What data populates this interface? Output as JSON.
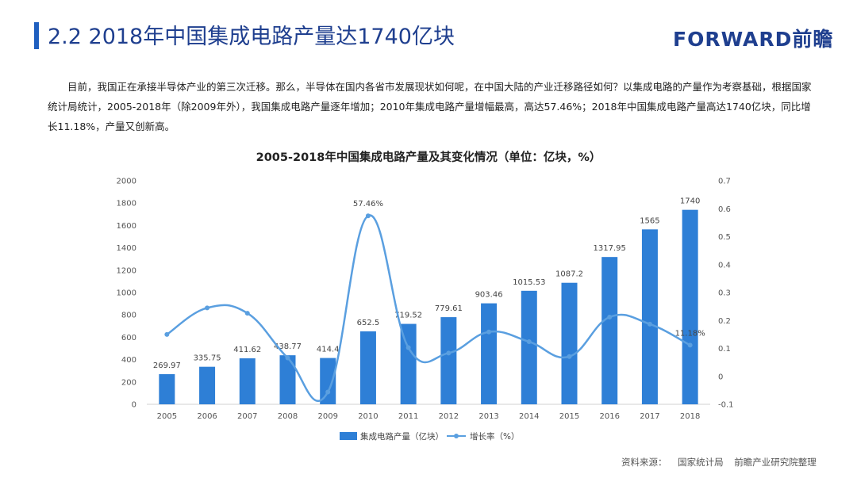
{
  "header": {
    "title": "2.2  2018年中国集成电路产量达1740亿块",
    "logo": "FORWARD前瞻"
  },
  "body_text": "目前，我国正在承接半导体产业的第三次迁移。那么，半导体在国内各省市发展现状如何呢，在中国大陆的产业迁移路径如何？以集成电路的产量作为考察基础，根据国家统计局统计，2005-2018年（除2009年外），我国集成电路产量逐年增加；2010年集成电路产量增幅最高，高达57.46%；2018年中国集成电路产量高达1740亿块，同比增长11.18%，产量又创新高。",
  "source": "资料来源： 国家统计局   前瞻产业研究院整理",
  "colors": {
    "accent": "#1f5fbf",
    "bar": "#2e7fd6",
    "line": "#5a9fe0"
  },
  "chart_data": {
    "type": "bar+line",
    "title": "2005-2018年中国集成电路产量及其变化情况（单位：亿块，%）",
    "categories": [
      "2005",
      "2006",
      "2007",
      "2008",
      "2009",
      "2010",
      "2011",
      "2012",
      "2013",
      "2014",
      "2015",
      "2016",
      "2017",
      "2018"
    ],
    "left_axis": {
      "ylim": [
        0,
        2000
      ],
      "ticks": [
        "0",
        "200",
        "400",
        "600",
        "800",
        "1000",
        "1200",
        "1400",
        "1600",
        "1800",
        "2000"
      ]
    },
    "right_axis": {
      "ylim": [
        -0.1,
        0.7
      ],
      "ticks": [
        "-0.1",
        "0",
        "0.1",
        "0.2",
        "0.3",
        "0.4",
        "0.5",
        "0.6",
        "0.7"
      ]
    },
    "series": [
      {
        "name": "集成电路产量（亿块）",
        "kind": "bar",
        "axis": "left",
        "values": [
          269.97,
          335.75,
          411.62,
          438.77,
          414.4,
          652.5,
          719.52,
          779.61,
          903.46,
          1015.53,
          1087.2,
          1317.95,
          1565,
          1740
        ],
        "labels": [
          "269.97",
          "335.75",
          "411.62",
          "438.77",
          "414.4",
          "652.5",
          "719.52",
          "779.61",
          "903.46",
          "1015.53",
          "1087.2",
          "1317.95",
          "1565",
          "1740"
        ]
      },
      {
        "name": "增长率（%）",
        "kind": "line",
        "axis": "right",
        "values": [
          0.15,
          0.245,
          0.226,
          0.066,
          -0.056,
          0.5746,
          0.1027,
          0.0835,
          0.159,
          0.124,
          0.071,
          0.212,
          0.187,
          0.1118
        ],
        "point_labels": {
          "5": "57.46%",
          "13": "11.18%"
        }
      }
    ],
    "legend_position": "bottom"
  }
}
